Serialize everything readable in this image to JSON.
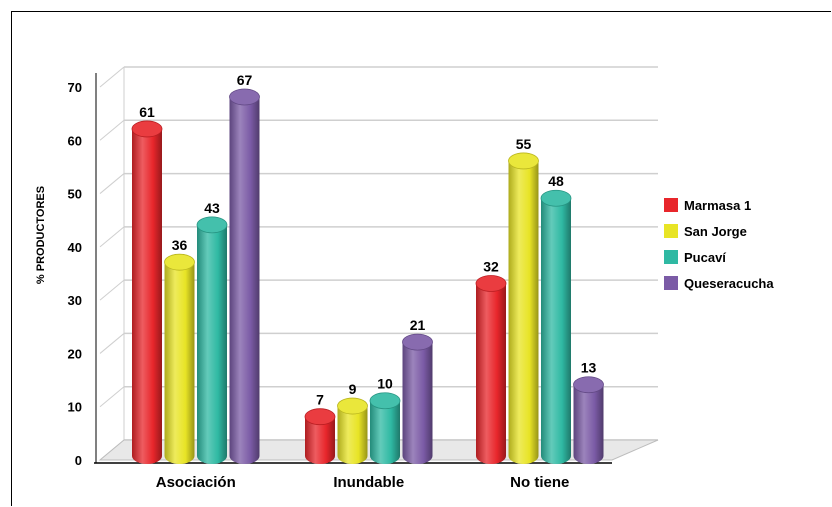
{
  "chart_data": {
    "type": "bar",
    "title": "",
    "xlabel": "",
    "ylabel": "% PRODUCTORES",
    "ylim": [
      0,
      70
    ],
    "yticks": [
      "0",
      "10",
      "20",
      "30",
      "40",
      "50",
      "60",
      "70"
    ],
    "categories": [
      "Asociación",
      "Inundable",
      "No tiene"
    ],
    "series": [
      {
        "name": "Marmasa 1",
        "values": [
          61,
          7,
          32
        ],
        "color": "#e8262b"
      },
      {
        "name": "San Jorge",
        "values": [
          36,
          9,
          55
        ],
        "color": "#e8e425"
      },
      {
        "name": "Pucaví",
        "values": [
          43,
          10,
          48
        ],
        "color": "#2fb9a3"
      },
      {
        "name": "Queseracucha",
        "values": [
          67,
          21,
          13
        ],
        "color": "#7b5ba6"
      }
    ],
    "grid": true,
    "legend_position": "right",
    "style": "3d-cylinder"
  }
}
